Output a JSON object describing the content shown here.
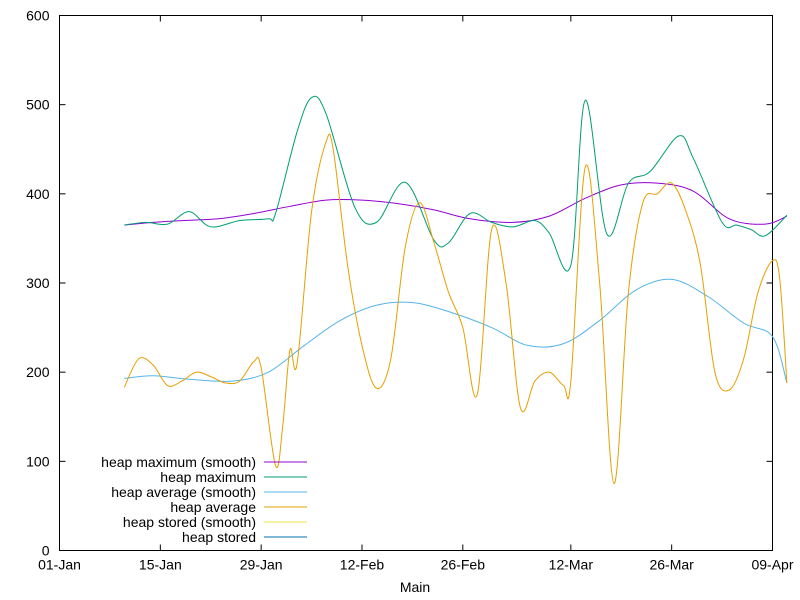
{
  "chart_data": {
    "type": "line",
    "xlabel": "Main",
    "ylabel": "",
    "title": "",
    "ylim": [
      0,
      600
    ],
    "xlim": [
      "2024-01-01",
      "2024-04-09"
    ],
    "y_ticks": [
      0,
      100,
      200,
      300,
      400,
      500,
      600
    ],
    "x_ticks": [
      {
        "date": "2024-01-01",
        "label": "01-Jan"
      },
      {
        "date": "2024-01-15",
        "label": "15-Jan"
      },
      {
        "date": "2024-01-29",
        "label": "29-Jan"
      },
      {
        "date": "2024-02-12",
        "label": "12-Feb"
      },
      {
        "date": "2024-02-26",
        "label": "26-Feb"
      },
      {
        "date": "2024-03-12",
        "label": "12-Mar"
      },
      {
        "date": "2024-03-26",
        "label": "26-Mar"
      },
      {
        "date": "2024-04-09",
        "label": "09-Apr"
      }
    ],
    "grid": false,
    "legend_position": "bottom-left",
    "series": [
      {
        "name": "heap maximum (smooth)",
        "color": "#9400d3",
        "points": [
          [
            "2024-01-10",
            365
          ],
          [
            "2024-01-14",
            368
          ],
          [
            "2024-01-18",
            370
          ],
          [
            "2024-01-23",
            372
          ],
          [
            "2024-01-28",
            378
          ],
          [
            "2024-02-02",
            386
          ],
          [
            "2024-02-07",
            393
          ],
          [
            "2024-02-12",
            393
          ],
          [
            "2024-02-17",
            389
          ],
          [
            "2024-02-22",
            382
          ],
          [
            "2024-02-27",
            372
          ],
          [
            "2024-03-04",
            368
          ],
          [
            "2024-03-09",
            375
          ],
          [
            "2024-03-14",
            395
          ],
          [
            "2024-03-19",
            410
          ],
          [
            "2024-03-24",
            412
          ],
          [
            "2024-03-29",
            403
          ],
          [
            "2024-04-03",
            372
          ],
          [
            "2024-04-08",
            366
          ],
          [
            "2024-04-11",
            375
          ]
        ]
      },
      {
        "name": "heap maximum",
        "color": "#009e73",
        "points": [
          [
            "2024-01-10",
            365
          ],
          [
            "2024-01-13",
            368
          ],
          [
            "2024-01-16",
            366
          ],
          [
            "2024-01-19",
            380
          ],
          [
            "2024-01-22",
            363
          ],
          [
            "2024-01-26",
            370
          ],
          [
            "2024-01-30",
            372
          ],
          [
            "2024-01-31",
            378
          ],
          [
            "2024-02-03",
            470
          ],
          [
            "2024-02-05",
            508
          ],
          [
            "2024-02-07",
            490
          ],
          [
            "2024-02-11",
            385
          ],
          [
            "2024-02-14",
            368
          ],
          [
            "2024-02-18",
            413
          ],
          [
            "2024-02-22",
            348
          ],
          [
            "2024-02-24",
            345
          ],
          [
            "2024-02-27",
            378
          ],
          [
            "2024-03-01",
            368
          ],
          [
            "2024-03-04",
            363
          ],
          [
            "2024-03-07",
            370
          ],
          [
            "2024-03-09",
            356
          ],
          [
            "2024-03-12",
            320
          ],
          [
            "2024-03-14",
            505
          ],
          [
            "2024-03-17",
            355
          ],
          [
            "2024-03-20",
            412
          ],
          [
            "2024-03-23",
            425
          ],
          [
            "2024-03-27",
            465
          ],
          [
            "2024-03-29",
            440
          ],
          [
            "2024-04-02",
            368
          ],
          [
            "2024-04-04",
            365
          ],
          [
            "2024-04-06",
            360
          ],
          [
            "2024-04-08",
            353
          ],
          [
            "2024-04-11",
            376
          ]
        ]
      },
      {
        "name": "heap average (smooth)",
        "color": "#56b4e9",
        "points": [
          [
            "2024-01-10",
            193
          ],
          [
            "2024-01-14",
            196
          ],
          [
            "2024-01-19",
            192
          ],
          [
            "2024-01-25",
            190
          ],
          [
            "2024-01-30",
            200
          ],
          [
            "2024-02-04",
            230
          ],
          [
            "2024-02-09",
            258
          ],
          [
            "2024-02-14",
            275
          ],
          [
            "2024-02-19",
            278
          ],
          [
            "2024-02-24",
            268
          ],
          [
            "2024-03-01",
            250
          ],
          [
            "2024-03-06",
            230
          ],
          [
            "2024-03-11",
            232
          ],
          [
            "2024-03-16",
            258
          ],
          [
            "2024-03-21",
            292
          ],
          [
            "2024-03-26",
            304
          ],
          [
            "2024-03-31",
            285
          ],
          [
            "2024-04-05",
            255
          ],
          [
            "2024-04-09",
            240
          ],
          [
            "2024-04-11",
            188
          ]
        ]
      },
      {
        "name": "heap average",
        "color": "#e69f00",
        "points": [
          [
            "2024-01-10",
            183
          ],
          [
            "2024-01-12",
            215
          ],
          [
            "2024-01-14",
            208
          ],
          [
            "2024-01-16",
            185
          ],
          [
            "2024-01-18",
            190
          ],
          [
            "2024-01-20",
            200
          ],
          [
            "2024-01-22",
            195
          ],
          [
            "2024-01-24",
            188
          ],
          [
            "2024-01-26",
            190
          ],
          [
            "2024-01-28",
            212
          ],
          [
            "2024-01-29",
            205
          ],
          [
            "2024-01-31",
            95
          ],
          [
            "2024-02-01",
            140
          ],
          [
            "2024-02-02",
            225
          ],
          [
            "2024-02-03",
            210
          ],
          [
            "2024-02-05",
            380
          ],
          [
            "2024-02-07",
            458
          ],
          [
            "2024-02-08",
            450
          ],
          [
            "2024-02-10",
            320
          ],
          [
            "2024-02-12",
            230
          ],
          [
            "2024-02-14",
            182
          ],
          [
            "2024-02-16",
            215
          ],
          [
            "2024-02-18",
            340
          ],
          [
            "2024-02-20",
            390
          ],
          [
            "2024-02-22",
            345
          ],
          [
            "2024-02-24",
            290
          ],
          [
            "2024-02-26",
            250
          ],
          [
            "2024-02-28",
            175
          ],
          [
            "2024-03-01",
            360
          ],
          [
            "2024-03-03",
            300
          ],
          [
            "2024-03-05",
            160
          ],
          [
            "2024-03-07",
            190
          ],
          [
            "2024-03-09",
            200
          ],
          [
            "2024-03-11",
            185
          ],
          [
            "2024-03-12",
            190
          ],
          [
            "2024-03-14",
            430
          ],
          [
            "2024-03-16",
            300
          ],
          [
            "2024-03-18",
            75
          ],
          [
            "2024-03-20",
            290
          ],
          [
            "2024-03-22",
            390
          ],
          [
            "2024-03-24",
            400
          ],
          [
            "2024-03-26",
            412
          ],
          [
            "2024-03-28",
            380
          ],
          [
            "2024-03-30",
            320
          ],
          [
            "2024-04-01",
            200
          ],
          [
            "2024-04-03",
            180
          ],
          [
            "2024-04-05",
            215
          ],
          [
            "2024-04-07",
            290
          ],
          [
            "2024-04-09",
            325
          ],
          [
            "2024-04-10",
            305
          ],
          [
            "2024-04-11",
            188
          ]
        ]
      },
      {
        "name": "heap stored (smooth)",
        "color": "#f0e442",
        "points": []
      },
      {
        "name": "heap stored",
        "color": "#0072b2",
        "points": []
      }
    ]
  }
}
